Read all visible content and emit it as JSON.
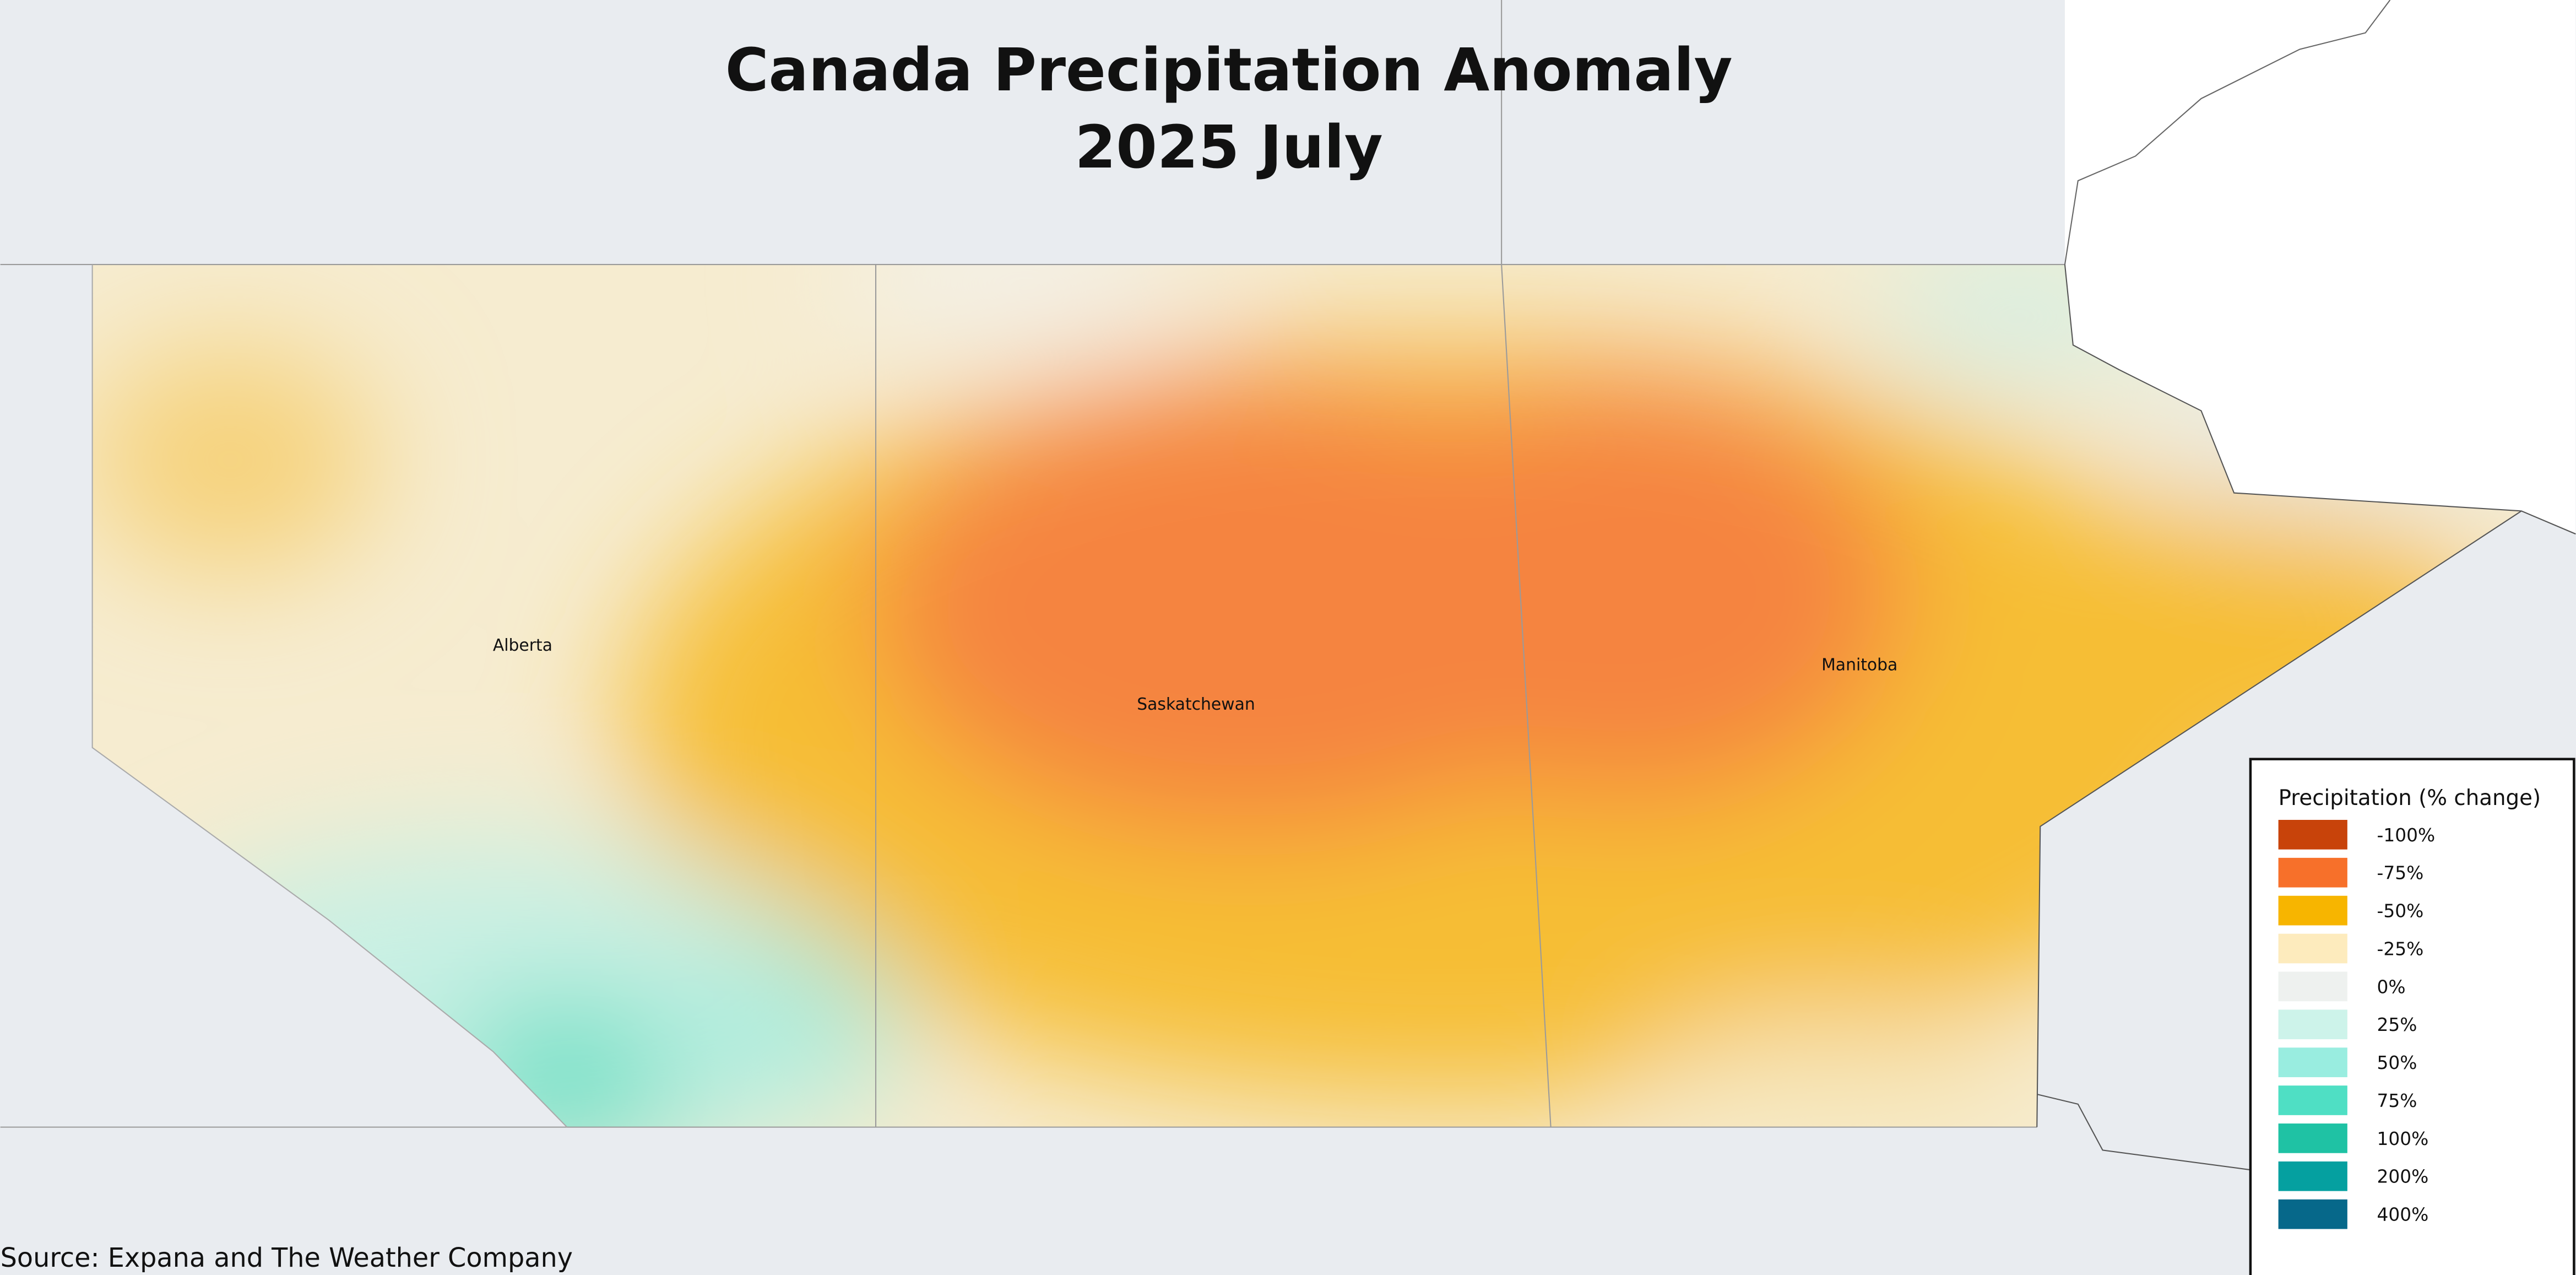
{
  "header": {
    "title_line1": "Canada Precipitation Anomaly",
    "title_line2": "2025 July"
  },
  "map": {
    "labels": [
      "Alberta",
      "Saskatchewan",
      "Manitoba"
    ]
  },
  "legend": {
    "title": "Precipitation (% change)",
    "items": [
      {
        "label": "-100%",
        "color": "#c8430a"
      },
      {
        "label": "-75%",
        "color": "#f7702a"
      },
      {
        "label": "-50%",
        "color": "#f7b500"
      },
      {
        "label": "-25%",
        "color": "#fdebbd"
      },
      {
        "label": "0%",
        "color": "#eef1ef"
      },
      {
        "label": "25%",
        "color": "#cdf3ea"
      },
      {
        "label": "50%",
        "color": "#99ede0"
      },
      {
        "label": "75%",
        "color": "#4fdfc4"
      },
      {
        "label": "100%",
        "color": "#1fc2a4"
      },
      {
        "label": "200%",
        "color": "#05a0a0"
      },
      {
        "label": "400%",
        "color": "#06688a"
      }
    ]
  },
  "footer": {
    "source": "Source: Expana and The Weather Company"
  }
}
